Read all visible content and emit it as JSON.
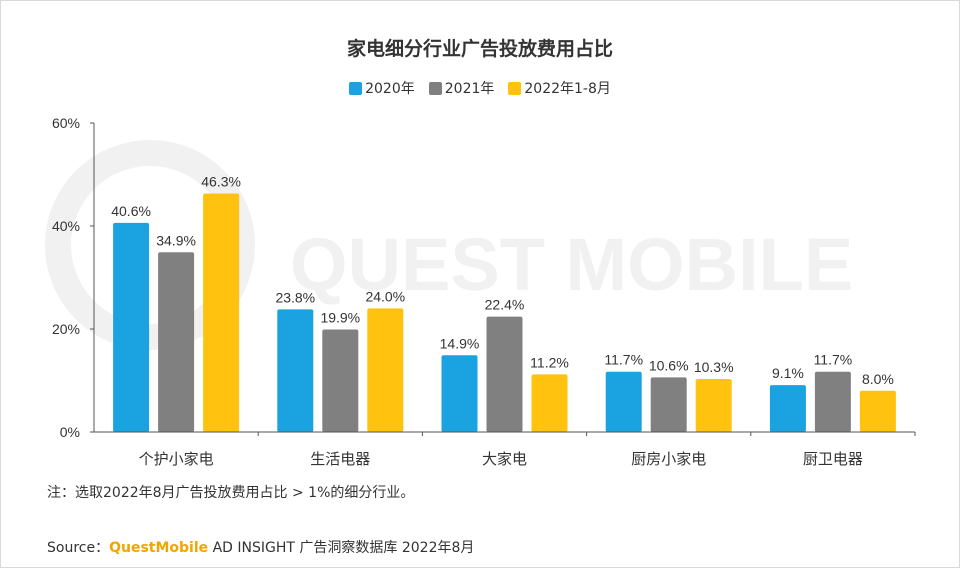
{
  "colors": {
    "series_2020": "#1aa3e0",
    "series_2021": "#808080",
    "series_2022": "#ffc20e",
    "axis": "#555555",
    "text": "#333333",
    "brand": "#f2a500",
    "watermark": "#f1f1f1"
  },
  "watermark": "QUEST MOBILE",
  "note": "注：选取2022年8月广告投放费用占比 > 1%的细分行业。",
  "source": {
    "prefix": "Source：",
    "brand": "QuestMobile",
    "rest": " AD INSIGHT 广告洞察数据库 2022年8月"
  },
  "chart_data": {
    "type": "bar",
    "title": "家电细分行业广告投放费用占比",
    "categories": [
      "个护小家电",
      "生活电器",
      "大家电",
      "厨房小家电",
      "厨卫电器"
    ],
    "series": [
      {
        "name": "2020年",
        "values": [
          40.6,
          23.8,
          14.9,
          11.7,
          9.1
        ],
        "labels": [
          "40.6%",
          "23.8%",
          "14.9%",
          "11.7%",
          "9.1%"
        ]
      },
      {
        "name": "2021年",
        "values": [
          34.9,
          19.9,
          22.4,
          10.6,
          11.7
        ],
        "labels": [
          "34.9%",
          "19.9%",
          "22.4%",
          "10.6%",
          "11.7%"
        ]
      },
      {
        "name": "2022年1-8月",
        "values": [
          46.3,
          24.0,
          11.2,
          10.3,
          8.0
        ],
        "labels": [
          "46.3%",
          "24.0%",
          "11.2%",
          "10.3%",
          "8.0%"
        ]
      }
    ],
    "ylim": [
      0,
      60
    ],
    "yticks": [
      0,
      20,
      40,
      60
    ],
    "ytick_labels": [
      "0%",
      "20%",
      "40%",
      "60%"
    ],
    "xlabel": "",
    "ylabel": "",
    "grid": false,
    "legend_position": "top-center"
  }
}
